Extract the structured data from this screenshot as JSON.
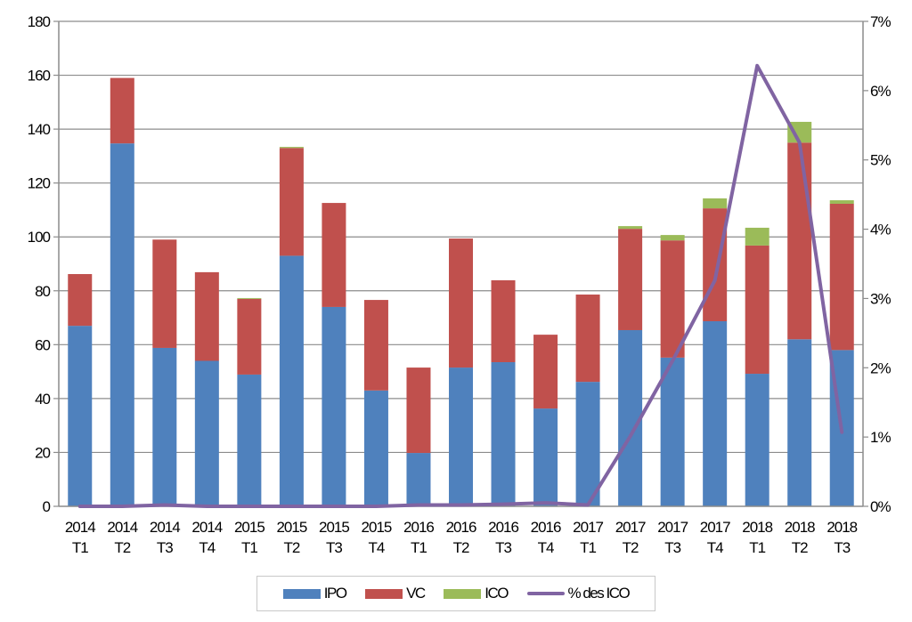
{
  "chart_data": {
    "type": "bar",
    "stacked": true,
    "categories": [
      "2014 T1",
      "2014 T2",
      "2014 T3",
      "2014 T4",
      "2015 T1",
      "2015 T2",
      "2015 T3",
      "2015 T4",
      "2016 T1",
      "2016 T2",
      "2016 T3",
      "2016 T4",
      "2017 T1",
      "2017 T2",
      "2017 T3",
      "2017 T4",
      "2018 T1",
      "2018 T2",
      "2018 T3"
    ],
    "series": [
      {
        "name": "IPO",
        "type": "bar",
        "axis": "left",
        "color": "#4f81bd",
        "values": [
          67,
          134.7,
          58.8,
          54,
          48.9,
          93,
          74,
          43,
          19.8,
          51.5,
          53.5,
          36.3,
          46.2,
          65.4,
          55.2,
          68.7,
          49.2,
          62,
          58
        ]
      },
      {
        "name": "VC",
        "type": "bar",
        "axis": "left",
        "color": "#c0504d",
        "values": [
          19.2,
          24.3,
          40.2,
          32.9,
          28.1,
          40,
          38.6,
          33.6,
          31.7,
          47.9,
          30.4,
          27.4,
          32.4,
          37.6,
          43.5,
          41.9,
          47.6,
          73,
          54.3
        ]
      },
      {
        "name": "ICO",
        "type": "bar",
        "axis": "left",
        "color": "#9bbb59",
        "values": [
          0,
          0,
          0,
          0,
          0.3,
          0.4,
          0,
          0,
          0,
          0,
          0,
          0,
          0,
          1,
          2,
          3.7,
          6.6,
          7.7,
          1.3
        ]
      },
      {
        "name": "% des ICO",
        "type": "line",
        "axis": "right",
        "color": "#8064a2",
        "values": [
          0,
          0,
          0.02,
          0,
          0,
          0,
          0,
          0,
          0.02,
          0.02,
          0.03,
          0.05,
          0.02,
          1.01,
          2.1,
          3.26,
          6.36,
          5.25,
          1.07
        ]
      }
    ],
    "ylim": [
      0,
      180
    ],
    "yticks": [
      0,
      20,
      40,
      60,
      80,
      100,
      120,
      140,
      160,
      180
    ],
    "y2lim": [
      0,
      7
    ],
    "y2ticks": [
      "0%",
      "1%",
      "2%",
      "3%",
      "4%",
      "5%",
      "6%",
      "7%"
    ],
    "grid": true,
    "legend": "bottom",
    "title": "",
    "xlabel": "",
    "ylabel": ""
  }
}
